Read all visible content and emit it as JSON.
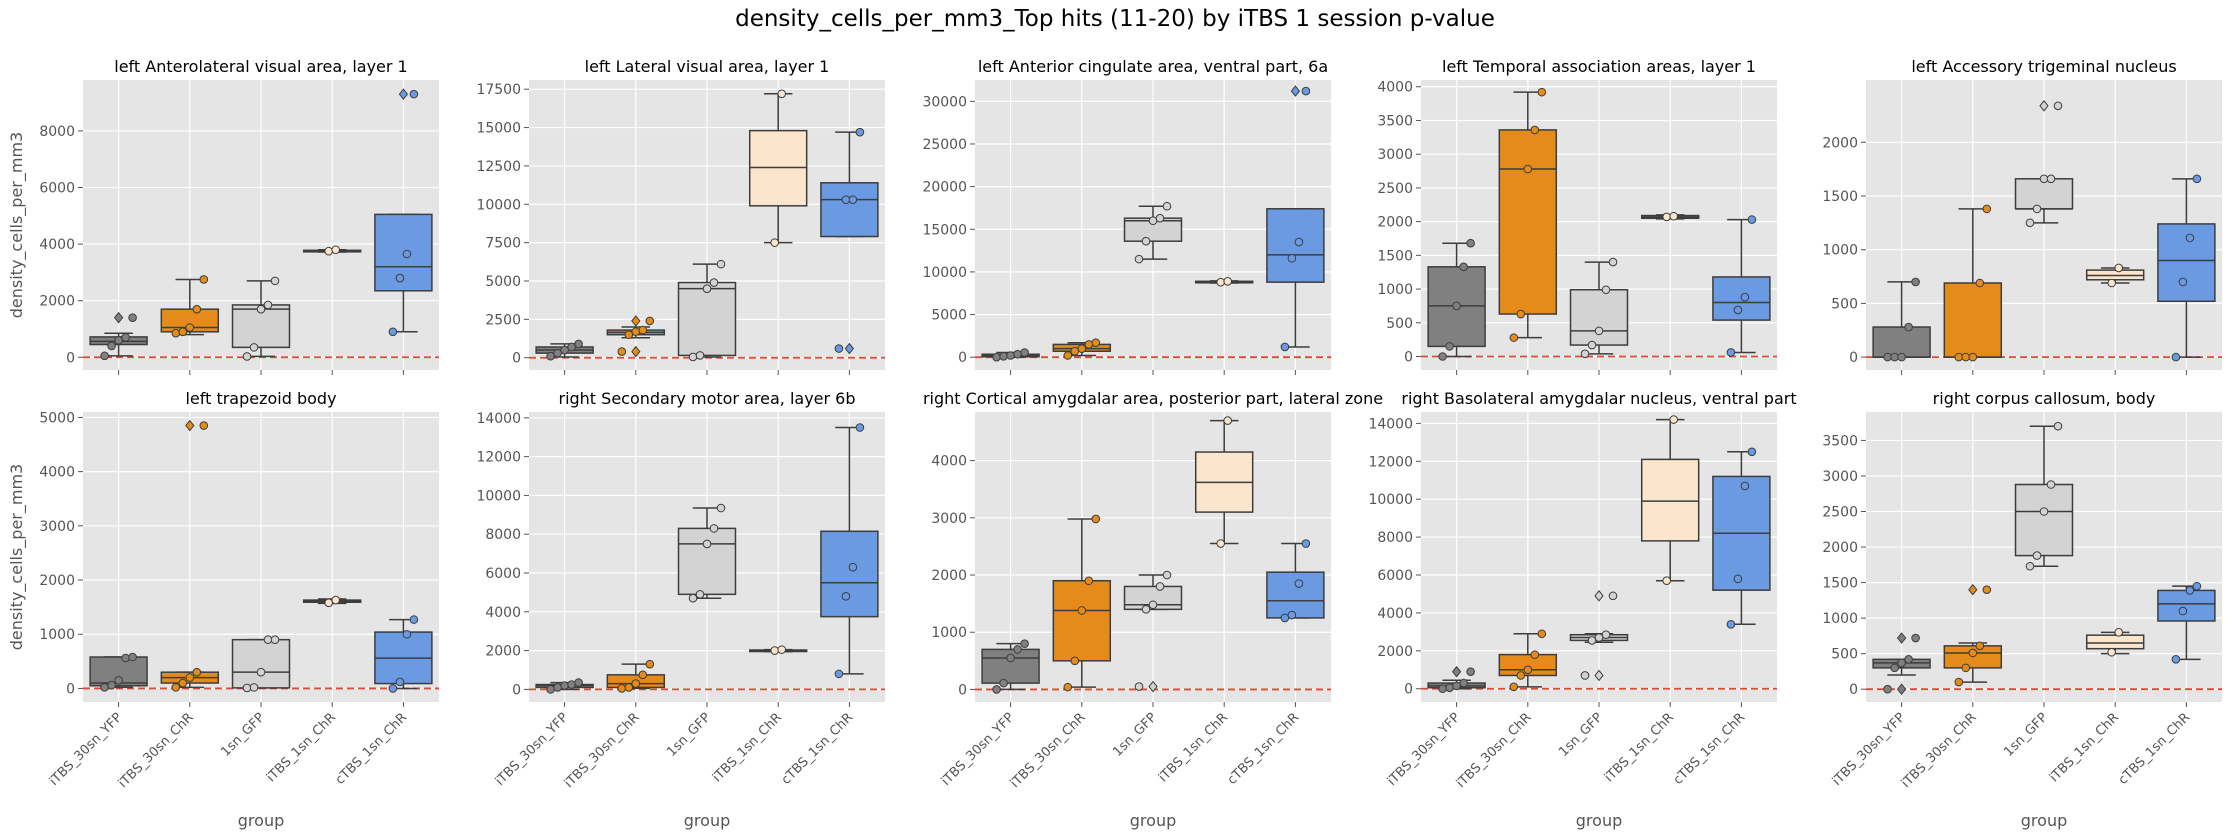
{
  "figure_title": "density_cells_per_mm3_Top hits (11-20) by iTBS 1 session p-value",
  "ylabel": "density_cells_per_mm3",
  "xlabel": "group",
  "groups": [
    "iTBS_30sn_YFP",
    "iTBS_30sn_ChR",
    "1sn_GFP",
    "iTBS_1sn_ChR",
    "cTBS_1sn_ChR"
  ],
  "group_colors": [
    "#808080",
    "#E58B1A",
    "#D3D3D3",
    "#FBE5CC",
    "#6A9AE2"
  ],
  "reference_line": {
    "y": 0,
    "color": "#E24A33",
    "style": "dashed"
  },
  "chart_data": [
    {
      "type": "box",
      "title": "left Anterolateral visual area, layer 1",
      "ylim": [
        -450,
        9800
      ],
      "yticks": [
        0,
        2000,
        4000,
        6000,
        8000
      ],
      "boxes": [
        {
          "q1": 450,
          "median": 560,
          "q3": 720,
          "whislo": 50,
          "whishi": 850,
          "fliers": [
            1400
          ]
        },
        {
          "q1": 900,
          "median": 1050,
          "q3": 1700,
          "whislo": 800,
          "whishi": 2750,
          "fliers": []
        },
        {
          "q1": 350,
          "median": 1700,
          "q3": 1850,
          "whislo": 30,
          "whishi": 2700,
          "fliers": []
        },
        {
          "q1": 3750,
          "median": 3760,
          "q3": 3780,
          "whislo": 3720,
          "whishi": 3800,
          "fliers": []
        },
        {
          "q1": 2350,
          "median": 3200,
          "q3": 5050,
          "whislo": 900,
          "whishi": 5050,
          "fliers": [
            9300
          ]
        }
      ],
      "points": [
        [
          50,
          400,
          600,
          700,
          1400
        ],
        [
          850,
          900,
          1050,
          1700,
          2750
        ],
        [
          30,
          350,
          1700,
          1850,
          2700
        ],
        [
          3750,
          3800
        ],
        [
          900,
          2800,
          3650,
          9300
        ]
      ]
    },
    {
      "type": "box",
      "title": "left Lateral visual area, layer 1",
      "ylim": [
        -800,
        18100
      ],
      "yticks": [
        0,
        2500,
        5000,
        7500,
        10000,
        12500,
        15000,
        17500
      ],
      "boxes": [
        {
          "q1": 300,
          "median": 500,
          "q3": 700,
          "whislo": 50,
          "whishi": 900,
          "fliers": []
        },
        {
          "q1": 1500,
          "median": 1650,
          "q3": 1800,
          "whislo": 1300,
          "whishi": 2000,
          "fliers": [
            2400,
            400
          ]
        },
        {
          "q1": 150,
          "median": 4500,
          "q3": 4900,
          "whislo": 50,
          "whishi": 6100,
          "fliers": []
        },
        {
          "q1": 9900,
          "median": 12400,
          "q3": 14800,
          "whislo": 7500,
          "whishi": 17200,
          "fliers": []
        },
        {
          "q1": 7900,
          "median": 10300,
          "q3": 11400,
          "whislo": 7900,
          "whishi": 14700,
          "fliers": [
            600
          ]
        }
      ],
      "points": [
        [
          100,
          300,
          500,
          700,
          900
        ],
        [
          400,
          1500,
          1700,
          1800,
          2400
        ],
        [
          50,
          150,
          4500,
          4900,
          6100
        ],
        [
          7500,
          17200
        ],
        [
          600,
          10300,
          10300,
          14700
        ]
      ]
    },
    {
      "type": "box",
      "title": "left Anterior cingulate area, ventral part, 6a",
      "ylim": [
        -1500,
        32500
      ],
      "yticks": [
        0,
        5000,
        10000,
        15000,
        20000,
        25000,
        30000
      ],
      "boxes": [
        {
          "q1": 50,
          "median": 200,
          "q3": 350,
          "whislo": 0,
          "whishi": 550,
          "fliers": []
        },
        {
          "q1": 700,
          "median": 1000,
          "q3": 1500,
          "whislo": 200,
          "whishi": 1700,
          "fliers": []
        },
        {
          "q1": 13600,
          "median": 16000,
          "q3": 16300,
          "whislo": 11500,
          "whishi": 17700,
          "fliers": []
        },
        {
          "q1": 8750,
          "median": 8850,
          "q3": 8900,
          "whislo": 8700,
          "whishi": 8950,
          "fliers": []
        },
        {
          "q1": 8800,
          "median": 12000,
          "q3": 17400,
          "whislo": 1200,
          "whishi": 17400,
          "fliers": [
            31200
          ]
        }
      ],
      "points": [
        [
          0,
          100,
          200,
          350,
          550
        ],
        [
          200,
          700,
          1000,
          1500,
          1700
        ],
        [
          11500,
          13600,
          16000,
          16300,
          17700
        ],
        [
          8800,
          8900
        ],
        [
          1200,
          11600,
          13500,
          31200
        ]
      ]
    },
    {
      "type": "box",
      "title": "left Temporal association areas, layer 1",
      "ylim": [
        -200,
        4100
      ],
      "yticks": [
        0,
        500,
        1000,
        1500,
        2000,
        2500,
        3000,
        3500,
        4000
      ],
      "boxes": [
        {
          "q1": 150,
          "median": 750,
          "q3": 1330,
          "whislo": 0,
          "whishi": 1680,
          "fliers": []
        },
        {
          "q1": 630,
          "median": 2780,
          "q3": 3360,
          "whislo": 280,
          "whishi": 3920,
          "fliers": []
        },
        {
          "q1": 170,
          "median": 380,
          "q3": 990,
          "whislo": 40,
          "whishi": 1400,
          "fliers": []
        },
        {
          "q1": 2050,
          "median": 2070,
          "q3": 2090,
          "whislo": 2040,
          "whishi": 2100,
          "fliers": []
        },
        {
          "q1": 540,
          "median": 800,
          "q3": 1180,
          "whislo": 60,
          "whishi": 2030,
          "fliers": []
        }
      ],
      "points": [
        [
          0,
          150,
          750,
          1330,
          1680
        ],
        [
          280,
          630,
          2780,
          3360,
          3920
        ],
        [
          40,
          170,
          380,
          990,
          1400
        ],
        [
          2070,
          2080
        ],
        [
          60,
          690,
          880,
          2030
        ]
      ]
    },
    {
      "type": "box",
      "title": "left Accessory trigeminal nucleus",
      "ylim": [
        -120,
        2580
      ],
      "yticks": [
        0,
        500,
        1000,
        1500,
        2000
      ],
      "boxes": [
        {
          "q1": 0,
          "median": 0,
          "q3": 280,
          "whislo": 0,
          "whishi": 700,
          "fliers": []
        },
        {
          "q1": 0,
          "median": 0,
          "q3": 690,
          "whislo": 0,
          "whishi": 1380,
          "fliers": []
        },
        {
          "q1": 1380,
          "median": 1380,
          "q3": 1660,
          "whislo": 1250,
          "whishi": 1660,
          "fliers": [
            2340
          ]
        },
        {
          "q1": 720,
          "median": 760,
          "q3": 810,
          "whislo": 690,
          "whishi": 830,
          "fliers": []
        },
        {
          "q1": 520,
          "median": 900,
          "q3": 1240,
          "whislo": 0,
          "whishi": 1660,
          "fliers": []
        }
      ],
      "points": [
        [
          0,
          0,
          0,
          280,
          700
        ],
        [
          0,
          0,
          0,
          690,
          1380
        ],
        [
          1250,
          1380,
          1660,
          1660,
          2340
        ],
        [
          690,
          830
        ],
        [
          0,
          700,
          1110,
          1660
        ]
      ]
    },
    {
      "type": "box",
      "title": "left trapezoid body",
      "ylim": [
        -250,
        5100
      ],
      "yticks": [
        0,
        1000,
        2000,
        3000,
        4000,
        5000
      ],
      "boxes": [
        {
          "q1": 50,
          "median": 100,
          "q3": 580,
          "whislo": 20,
          "whishi": 580,
          "fliers": []
        },
        {
          "q1": 100,
          "median": 200,
          "q3": 300,
          "whislo": 20,
          "whishi": 300,
          "fliers": [
            4850
          ]
        },
        {
          "q1": 10,
          "median": 300,
          "q3": 900,
          "whislo": 10,
          "whishi": 900,
          "fliers": []
        },
        {
          "q1": 1590,
          "median": 1610,
          "q3": 1630,
          "whislo": 1570,
          "whishi": 1650,
          "fliers": []
        },
        {
          "q1": 90,
          "median": 560,
          "q3": 1040,
          "whislo": 0,
          "whishi": 1270,
          "fliers": []
        }
      ],
      "points": [
        [
          20,
          60,
          150,
          560,
          580
        ],
        [
          20,
          100,
          200,
          300,
          4850
        ],
        [
          10,
          20,
          300,
          900,
          900
        ],
        [
          1580,
          1630
        ],
        [
          0,
          120,
          1000,
          1270
        ]
      ]
    },
    {
      "type": "box",
      "title": "right Secondary motor area, layer 6b",
      "ylim": [
        -650,
        14300
      ],
      "yticks": [
        0,
        2000,
        4000,
        6000,
        8000,
        10000,
        12000,
        14000
      ],
      "boxes": [
        {
          "q1": 100,
          "median": 200,
          "q3": 250,
          "whislo": 0,
          "whishi": 350,
          "fliers": []
        },
        {
          "q1": 100,
          "median": 300,
          "q3": 750,
          "whislo": 50,
          "whishi": 1300,
          "fliers": []
        },
        {
          "q1": 4900,
          "median": 7500,
          "q3": 8300,
          "whislo": 4700,
          "whishi": 9350,
          "fliers": []
        },
        {
          "q1": 1970,
          "median": 2000,
          "q3": 2030,
          "whislo": 1950,
          "whishi": 2050,
          "fliers": []
        },
        {
          "q1": 3750,
          "median": 5500,
          "q3": 8150,
          "whislo": 800,
          "whishi": 13500,
          "fliers": []
        }
      ],
      "points": [
        [
          0,
          100,
          200,
          250,
          350
        ],
        [
          50,
          100,
          300,
          750,
          1300
        ],
        [
          4700,
          4900,
          7500,
          8300,
          9350
        ],
        [
          2000,
          2050
        ],
        [
          800,
          4800,
          6300,
          13500
        ]
      ]
    },
    {
      "type": "box",
      "title": "right Cortical amygdalar area, posterior part, lateral zone",
      "ylim": [
        -220,
        4850
      ],
      "yticks": [
        0,
        1000,
        2000,
        3000,
        4000
      ],
      "boxes": [
        {
          "q1": 110,
          "median": 550,
          "q3": 700,
          "whislo": 0,
          "whishi": 800,
          "fliers": []
        },
        {
          "q1": 500,
          "median": 1380,
          "q3": 1900,
          "whislo": 40,
          "whishi": 2980,
          "fliers": []
        },
        {
          "q1": 1400,
          "median": 1480,
          "q3": 1800,
          "whislo": 1400,
          "whishi": 2000,
          "fliers": [
            50
          ]
        },
        {
          "q1": 3100,
          "median": 3620,
          "q3": 4150,
          "whislo": 2550,
          "whishi": 4700,
          "fliers": []
        },
        {
          "q1": 1250,
          "median": 1550,
          "q3": 2050,
          "whislo": 1250,
          "whishi": 2550,
          "fliers": []
        }
      ],
      "points": [
        [
          0,
          110,
          550,
          700,
          800
        ],
        [
          40,
          500,
          1380,
          1900,
          2980
        ],
        [
          50,
          1400,
          1480,
          1800,
          2000
        ],
        [
          2550,
          4700
        ],
        [
          1250,
          1300,
          1850,
          2550
        ]
      ]
    },
    {
      "type": "box",
      "title": "right Basolateral amygdalar nucleus, ventral part",
      "ylim": [
        -700,
        14600
      ],
      "yticks": [
        0,
        2000,
        4000,
        6000,
        8000,
        10000,
        12000,
        14000
      ],
      "boxes": [
        {
          "q1": 50,
          "median": 150,
          "q3": 300,
          "whislo": 0,
          "whishi": 450,
          "fliers": [
            900
          ]
        },
        {
          "q1": 700,
          "median": 1000,
          "q3": 1800,
          "whislo": 100,
          "whishi": 2900,
          "fliers": []
        },
        {
          "q1": 2550,
          "median": 2700,
          "q3": 2850,
          "whislo": 2450,
          "whishi": 2900,
          "fliers": [
            4900,
            700
          ]
        },
        {
          "q1": 7800,
          "median": 9900,
          "q3": 12100,
          "whislo": 5700,
          "whishi": 14200,
          "fliers": []
        },
        {
          "q1": 5200,
          "median": 8200,
          "q3": 11200,
          "whislo": 3400,
          "whishi": 12500,
          "fliers": []
        }
      ],
      "points": [
        [
          0,
          50,
          150,
          300,
          900
        ],
        [
          100,
          700,
          1000,
          1800,
          2900
        ],
        [
          700,
          2550,
          2700,
          2850,
          4900
        ],
        [
          5700,
          14200
        ],
        [
          3400,
          5800,
          10700,
          12500
        ]
      ]
    },
    {
      "type": "box",
      "title": "right corpus callosum, body",
      "ylim": [
        -180,
        3900
      ],
      "yticks": [
        0,
        500,
        1000,
        1500,
        2000,
        2500,
        3000,
        3500
      ],
      "boxes": [
        {
          "q1": 300,
          "median": 370,
          "q3": 420,
          "whislo": 200,
          "whishi": 420,
          "fliers": [
            720,
            0
          ]
        },
        {
          "q1": 300,
          "median": 510,
          "q3": 610,
          "whislo": 100,
          "whishi": 650,
          "fliers": [
            1400
          ]
        },
        {
          "q1": 1880,
          "median": 2500,
          "q3": 2880,
          "whislo": 1730,
          "whishi": 3700,
          "fliers": []
        },
        {
          "q1": 570,
          "median": 650,
          "q3": 760,
          "whislo": 500,
          "whishi": 800,
          "fliers": []
        },
        {
          "q1": 960,
          "median": 1200,
          "q3": 1390,
          "whislo": 420,
          "whishi": 1450,
          "fliers": []
        }
      ],
      "points": [
        [
          0,
          300,
          370,
          420,
          720
        ],
        [
          100,
          300,
          510,
          610,
          1400
        ],
        [
          1730,
          1880,
          2500,
          2880,
          3700
        ],
        [
          520,
          800
        ],
        [
          420,
          1100,
          1390,
          1450
        ]
      ]
    }
  ]
}
